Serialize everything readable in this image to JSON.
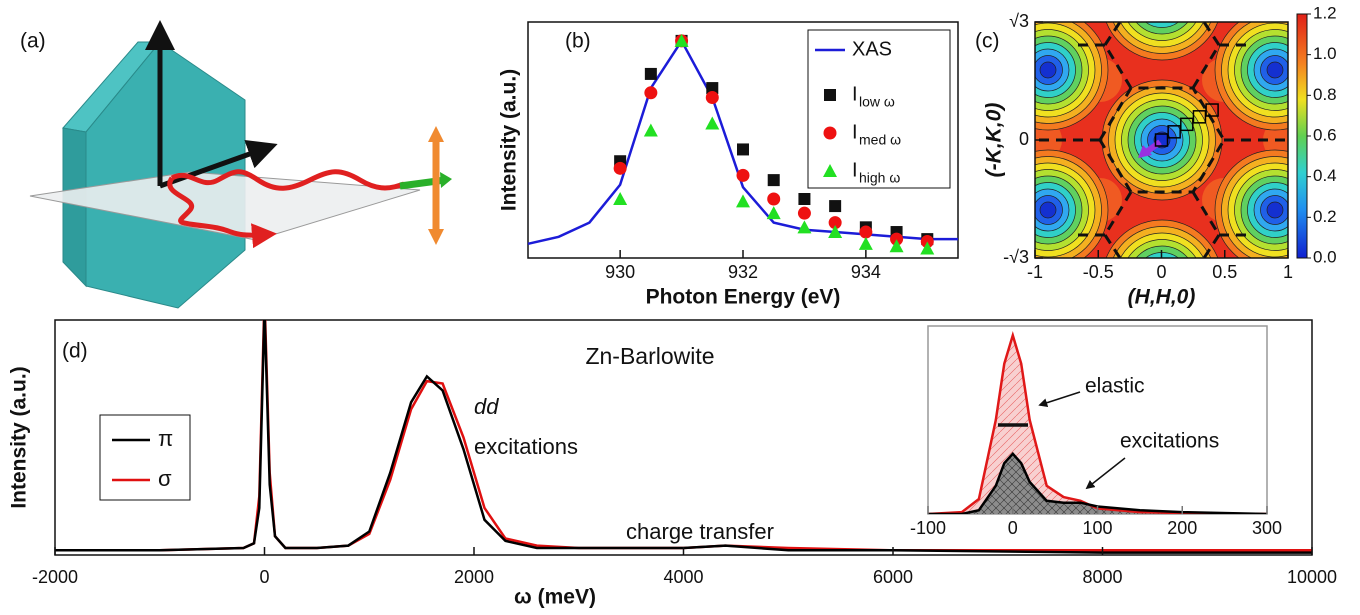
{
  "chart_data": [
    {
      "type": "diagram",
      "label": "(a)"
    },
    {
      "type": "scatter",
      "label": "(b)",
      "xlabel": "Photon Energy (eV)",
      "ylabel": "Intensity (a.u.)",
      "xlim": [
        928.5,
        935.5
      ],
      "ylim": [
        0,
        1
      ],
      "xticks": [
        930,
        932,
        934
      ],
      "series": [
        {
          "name": "XAS",
          "color": "#1c1cd8",
          "marker": "line",
          "x": [
            928.5,
            929,
            929.5,
            930,
            930.5,
            931,
            931.5,
            932,
            932.5,
            933,
            933.5,
            934,
            934.5,
            935,
            935.5
          ],
          "values": [
            0.06,
            0.09,
            0.15,
            0.31,
            0.72,
            0.92,
            0.68,
            0.3,
            0.15,
            0.12,
            0.11,
            0.1,
            0.09,
            0.08,
            0.08
          ]
        },
        {
          "name": "I",
          "name_sub": "low ω",
          "color": "#111111",
          "marker": "square",
          "x": [
            930,
            930.5,
            931,
            931.5,
            932,
            932.5,
            933,
            933.5,
            934,
            934.5,
            935
          ],
          "values": [
            0.41,
            0.78,
            0.92,
            0.72,
            0.46,
            0.33,
            0.25,
            0.22,
            0.13,
            0.11,
            0.08
          ]
        },
        {
          "name": "I",
          "name_sub": "med ω",
          "color": "#ee1111",
          "marker": "circle",
          "x": [
            930,
            930.5,
            931,
            931.5,
            932,
            932.5,
            933,
            933.5,
            934,
            934.5,
            935
          ],
          "values": [
            0.38,
            0.7,
            0.92,
            0.68,
            0.35,
            0.25,
            0.19,
            0.15,
            0.11,
            0.08,
            0.07
          ]
        },
        {
          "name": "I",
          "name_sub": "high ω",
          "color": "#22e022",
          "marker": "triangle",
          "x": [
            930,
            930.5,
            931,
            931.5,
            932,
            932.5,
            933,
            933.5,
            934,
            934.5,
            935
          ],
          "values": [
            0.25,
            0.54,
            0.92,
            0.57,
            0.24,
            0.19,
            0.13,
            0.11,
            0.06,
            0.05,
            0.04
          ]
        }
      ]
    },
    {
      "type": "contour",
      "label": "(c)",
      "xlabel": "(H,H,0)",
      "ylabel": "(-K,K,0)",
      "xlim": [
        -1,
        1
      ],
      "ylim": [
        -1.732,
        1.732
      ],
      "xticks": [
        -1,
        -0.5,
        0,
        0.5,
        1
      ],
      "yticks": [
        {
          "value": -1.732,
          "label": "-√3"
        },
        0,
        {
          "value": 1.732,
          "label": "√3"
        }
      ],
      "colorbar": {
        "lim": [
          0,
          1.2
        ],
        "ticks": [
          {
            "value": 0,
            "label": "0.0"
          },
          0.2,
          0.4,
          0.6,
          0.8,
          {
            "value": 1,
            "label": "1.0"
          },
          1.2
        ]
      },
      "points": {
        "color": "#000000",
        "x": [
          0,
          0.1,
          0.2,
          0.3,
          0.4
        ],
        "values": [
          0,
          0.12,
          0.23,
          0.34,
          0.44
        ]
      }
    },
    {
      "type": "line",
      "label": "(d)",
      "title": "Zn-Barlowite",
      "xlabel": "ω (meV)",
      "ylabel": "Intensity (a.u.)",
      "xlim": [
        -2000,
        10000
      ],
      "ylim": [
        0,
        1
      ],
      "xticks": [
        -2000,
        0,
        2000,
        4000,
        6000,
        8000,
        10000
      ],
      "x": [
        -2000,
        -1000,
        -200,
        -100,
        -50,
        0,
        50,
        100,
        200,
        500,
        800,
        1000,
        1200,
        1400,
        1550,
        1700,
        1900,
        2100,
        2300,
        2600,
        3000,
        4000,
        4400,
        5000,
        6000,
        8000,
        10000
      ],
      "series": [
        {
          "name": "π",
          "color": "#000000",
          "values": [
            0.02,
            0.02,
            0.03,
            0.05,
            0.2,
            1.05,
            0.3,
            0.08,
            0.03,
            0.03,
            0.04,
            0.1,
            0.35,
            0.65,
            0.76,
            0.7,
            0.45,
            0.15,
            0.06,
            0.03,
            0.03,
            0.03,
            0.04,
            0.02,
            0.02,
            0.01,
            0.01
          ]
        },
        {
          "name": "σ",
          "color": "#e01010",
          "values": [
            0.02,
            0.02,
            0.03,
            0.05,
            0.25,
            1.1,
            0.35,
            0.08,
            0.03,
            0.03,
            0.04,
            0.09,
            0.32,
            0.62,
            0.74,
            0.73,
            0.5,
            0.2,
            0.07,
            0.04,
            0.03,
            0.03,
            0.04,
            0.03,
            0.02,
            0.02,
            0.02
          ]
        }
      ],
      "annotations": [
        "dd",
        "excitations",
        "charge transfer"
      ]
    },
    {
      "type": "line",
      "inset": true,
      "xlim": [
        -100,
        300
      ],
      "ylim": [
        0,
        1
      ],
      "xticks": [
        -100,
        0,
        100,
        200,
        300
      ],
      "x": [
        -100,
        -60,
        -40,
        -20,
        -10,
        0,
        10,
        20,
        40,
        60,
        80,
        100,
        150,
        200,
        300
      ],
      "series": [
        {
          "color": "#e01818",
          "fill": "#f8d0d0",
          "values": [
            0,
            0.01,
            0.08,
            0.5,
            0.8,
            0.95,
            0.8,
            0.5,
            0.15,
            0.09,
            0.07,
            0.03,
            0.01,
            0.005,
            0
          ]
        },
        {
          "color": "#000000",
          "fill": "#8c8c8c",
          "values": [
            0,
            0,
            0.02,
            0.15,
            0.27,
            0.32,
            0.27,
            0.17,
            0.07,
            0.06,
            0.06,
            0.04,
            0.02,
            0.01,
            0
          ]
        }
      ],
      "annotations": [
        "elastic",
        "excitations"
      ]
    }
  ]
}
